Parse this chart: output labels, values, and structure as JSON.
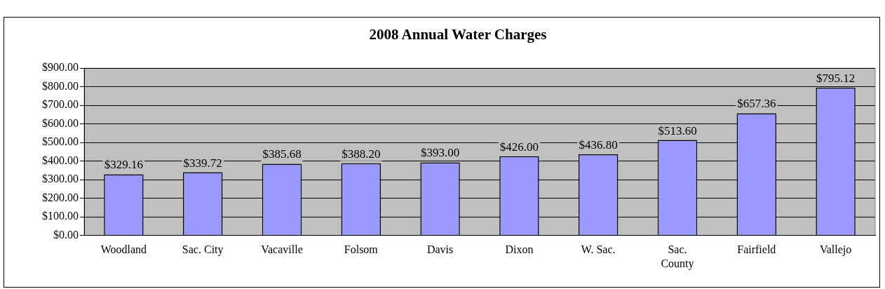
{
  "chart_data": {
    "type": "bar",
    "title": "2008 Annual Water Charges",
    "categories": [
      "Woodland",
      "Sac. City",
      "Vacaville",
      "Folsom",
      "Davis",
      "Dixon",
      "W. Sac.",
      "Sac. County",
      "Fairfield",
      "Vallejo"
    ],
    "values": [
      329.16,
      339.72,
      385.68,
      388.2,
      393,
      426,
      436.8,
      513.6,
      657.36,
      795.12
    ],
    "value_labels": [
      "$329.16",
      "$339.72",
      "$385.68",
      "$388.20",
      "$393.00",
      "$426.00",
      "$436.80",
      "$513.60",
      "$657.36",
      "$795.12"
    ],
    "color": "#9999ff",
    "ylim": [
      0,
      900
    ],
    "yticks": [
      {
        "value": 0,
        "label": "$0.00"
      },
      {
        "value": 100,
        "label": "$100.00"
      },
      {
        "value": 200,
        "label": "$200.00"
      },
      {
        "value": 300,
        "label": "$300.00"
      },
      {
        "value": 400,
        "label": "$400.00"
      },
      {
        "value": 500,
        "label": "$500.00"
      },
      {
        "value": 600,
        "label": "$600.00"
      },
      {
        "value": 700,
        "label": "$700.00"
      },
      {
        "value": 800,
        "label": "$800.00"
      },
      {
        "value": 900,
        "label": "$900.00"
      }
    ],
    "grid": "y",
    "legend": false
  }
}
